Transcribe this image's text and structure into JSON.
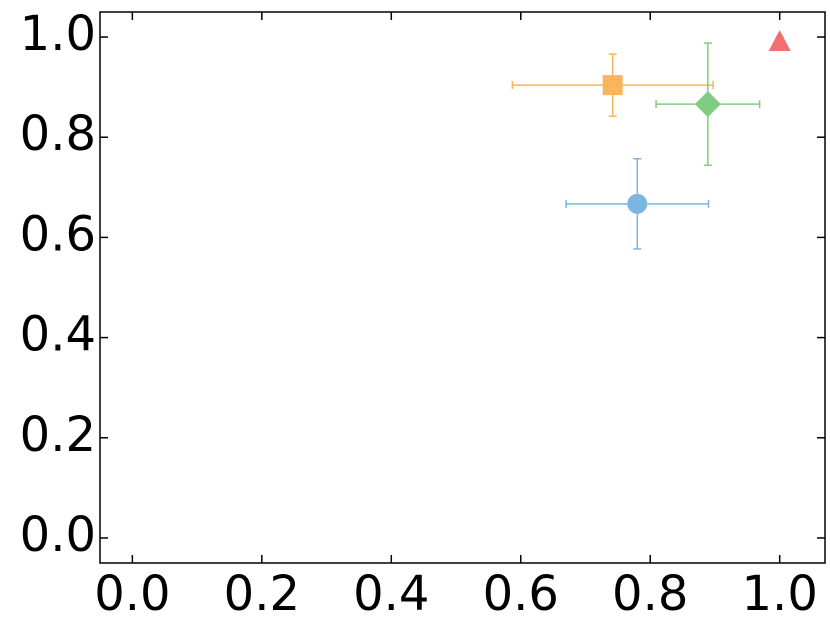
{
  "chart_data": {
    "type": "scatter",
    "xlim": [
      -0.05,
      1.07
    ],
    "ylim": [
      -0.05,
      1.05
    ],
    "xticks": [
      {
        "value": 0,
        "label": "0.0"
      },
      0.2,
      0.4,
      0.6,
      0.8,
      {
        "value": 1,
        "label": "1.0"
      }
    ],
    "yticks": [
      {
        "value": 0,
        "label": "0.0"
      },
      0.2,
      0.4,
      0.6,
      0.8,
      {
        "value": 1,
        "label": "1.0"
      }
    ],
    "grid": false,
    "series": [
      {
        "color": "#7ab6e0",
        "marker": "circle",
        "x": [
          0.78
        ],
        "values": [
          0.667
        ],
        "xerr": [
          0.11
        ],
        "yerr": [
          0.09
        ]
      },
      {
        "color": "#fbb45a",
        "marker": "square",
        "x": [
          0.742
        ],
        "values": [
          0.904
        ],
        "xerr": [
          0.155
        ],
        "yerr": [
          0.062
        ]
      },
      {
        "color": "#80cc80",
        "marker": "diamond",
        "x": [
          0.889
        ],
        "values": [
          0.866
        ],
        "xerr": [
          0.08
        ],
        "yerr": [
          0.122
        ]
      },
      {
        "color": "#f07070",
        "marker": "triangle",
        "x": [
          1.0
        ],
        "values": [
          0.99
        ],
        "xerr": [
          0
        ],
        "yerr": [
          0.01
        ]
      }
    ]
  }
}
